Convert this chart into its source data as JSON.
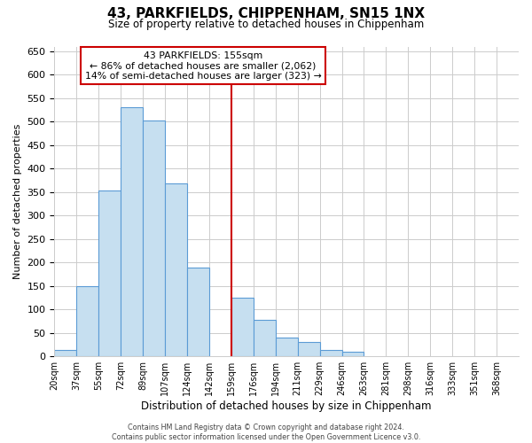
{
  "title": "43, PARKFIELDS, CHIPPENHAM, SN15 1NX",
  "subtitle": "Size of property relative to detached houses in Chippenham",
  "xlabel": "Distribution of detached houses by size in Chippenham",
  "ylabel": "Number of detached properties",
  "footer_line1": "Contains HM Land Registry data © Crown copyright and database right 2024.",
  "footer_line2": "Contains public sector information licensed under the Open Government Licence v3.0.",
  "bin_labels": [
    "20sqm",
    "37sqm",
    "55sqm",
    "72sqm",
    "89sqm",
    "107sqm",
    "124sqm",
    "142sqm",
    "159sqm",
    "176sqm",
    "194sqm",
    "211sqm",
    "229sqm",
    "246sqm",
    "263sqm",
    "281sqm",
    "298sqm",
    "316sqm",
    "333sqm",
    "351sqm",
    "368sqm"
  ],
  "bar_heights": [
    13,
    150,
    353,
    530,
    503,
    368,
    190,
    0,
    125,
    78,
    40,
    30,
    14,
    10,
    0,
    0,
    0,
    0,
    0,
    0,
    0
  ],
  "bar_color": "#c6dff0",
  "bar_edge_color": "#5b9bd5",
  "vline_index": 8,
  "vline_color": "#cc0000",
  "annotation_title": "43 PARKFIELDS: 155sqm",
  "annotation_line1": "← 86% of detached houses are smaller (2,062)",
  "annotation_line2": "14% of semi-detached houses are larger (323) →",
  "annotation_box_color": "#ffffff",
  "annotation_box_edge_color": "#cc0000",
  "ylim": [
    0,
    660
  ],
  "yticks": [
    0,
    50,
    100,
    150,
    200,
    250,
    300,
    350,
    400,
    450,
    500,
    550,
    600,
    650
  ],
  "grid_color": "#cccccc",
  "background_color": "#ffffff"
}
